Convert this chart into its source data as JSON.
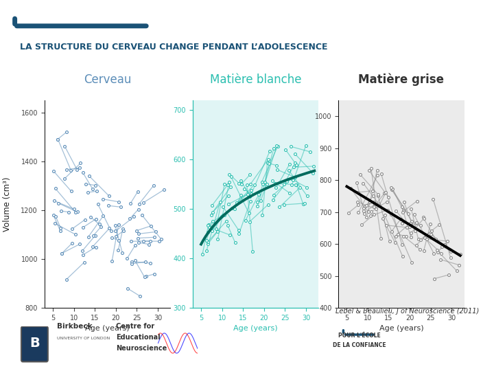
{
  "title": "LA STRUCTURE DU CERVEAU CHANGE PENDANT L’ADOLESCENCE",
  "title_color": "#1a5276",
  "background_color": "#ffffff",
  "ylabel": "Volume (cm³)",
  "xlabel": "Age (years)",
  "panel1_title": "Cerveau",
  "panel2_title": "Matière blanche",
  "panel3_title": "Matière grise",
  "panel1_color": "#5b8db8",
  "panel2_color": "#2bbfb0",
  "panel3_color": "#333333",
  "panel1_bg": "#ffffff",
  "panel2_bg": "#e0f5f5",
  "panel3_bg": "#ebebeb",
  "panel1_ylim": [
    800,
    1650
  ],
  "panel2_ylim": [
    300,
    720
  ],
  "panel3_ylim": [
    400,
    1050
  ],
  "panel1_yticks": [
    800,
    1000,
    1200,
    1400,
    1600
  ],
  "panel2_yticks": [
    300,
    400,
    500,
    600,
    700
  ],
  "panel3_yticks": [
    400,
    500,
    600,
    700,
    800,
    900,
    1000
  ],
  "xlim": [
    3,
    33
  ],
  "xticks": [
    5,
    10,
    15,
    20,
    25,
    30
  ],
  "reference_citation": "Lebel & Beaulieu, J of Neuroscience (2011)",
  "bar_color": "#1a5276",
  "wm_trend_color": "#006b5e",
  "gm_trend_color": "#000000",
  "panel2_spine_color": "#2bbfb0",
  "panel3_spine_color": "#999999"
}
